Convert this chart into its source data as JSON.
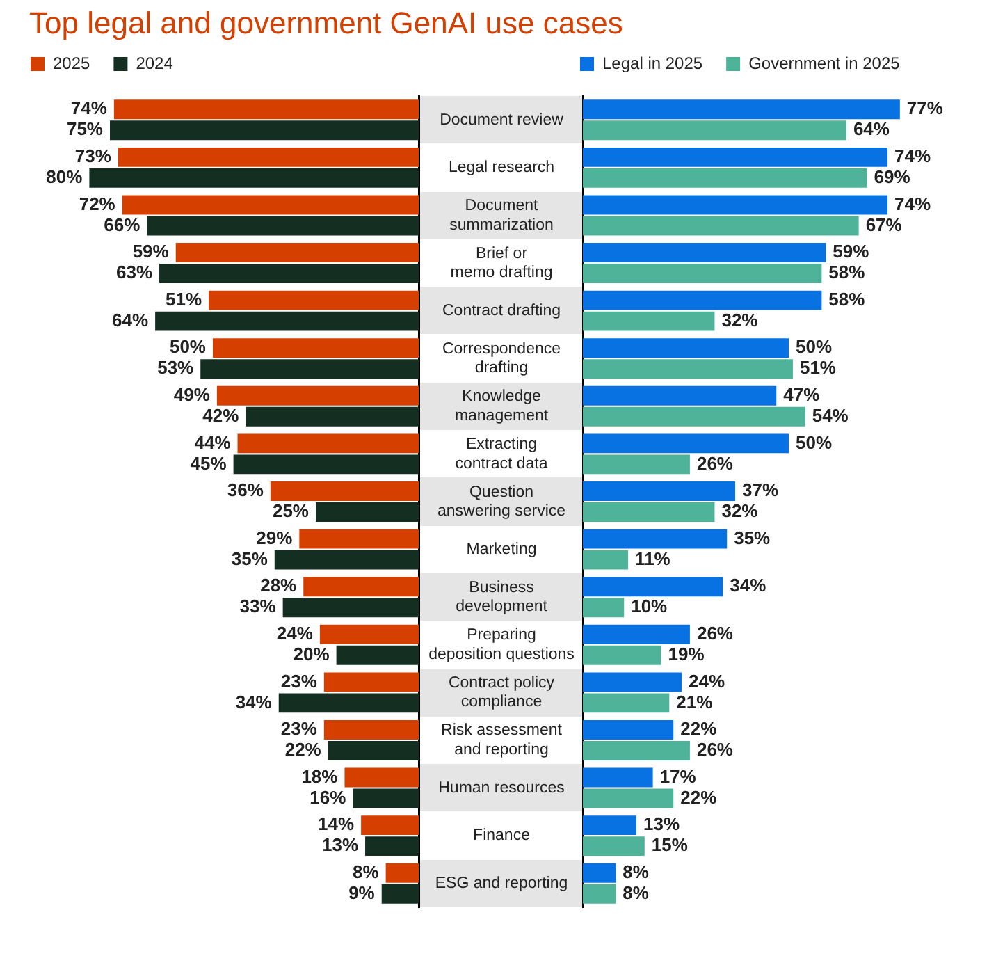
{
  "chart_data": [
    {
      "type": "bar",
      "orientation": "horizontal",
      "title": "Top legal and government GenAI use cases",
      "categories": [
        "Document review",
        "Legal research",
        "Document\nsummarization",
        "Brief or\nmemo drafting",
        "Contract drafting",
        "Correspondence\ndrafting",
        "Knowledge\nmanagement",
        "Extracting\ncontract data",
        "Question\nanswering service",
        "Marketing",
        "Business\ndevelopment",
        "Preparing\ndeposition questions",
        "Contract policy\ncompliance",
        "Risk assessment\nand reporting",
        "Human resources",
        "Finance",
        "ESG and reporting"
      ],
      "series": [
        {
          "name": "2025",
          "color": "#d54000",
          "values": [
            74,
            73,
            72,
            59,
            51,
            50,
            49,
            44,
            36,
            29,
            28,
            24,
            23,
            23,
            18,
            14,
            8
          ],
          "value_labels": [
            "74%",
            "73%",
            "72%",
            "59%",
            "51%",
            "50%",
            "49%",
            "44%",
            "36%",
            "29%",
            "28%",
            "24%",
            "23%",
            "23%",
            "18%",
            "14%",
            "8%"
          ]
        },
        {
          "name": "2024",
          "color": "#152e22",
          "values": [
            75,
            80,
            66,
            63,
            64,
            53,
            42,
            45,
            25,
            35,
            33,
            20,
            34,
            22,
            16,
            13,
            9
          ],
          "value_labels": [
            "75%",
            "80%",
            "66%",
            "63%",
            "64%",
            "53%",
            "42%",
            "45%",
            "25%",
            "35%",
            "33%",
            "20%",
            "34%",
            "22%",
            "16%",
            "13%",
            "9%"
          ]
        }
      ],
      "legend": "top left",
      "tick_labels": "y"
    },
    {
      "type": "bar",
      "orientation": "horizontal",
      "categories": [
        null,
        null,
        null,
        null,
        null,
        null,
        null,
        null,
        null,
        null,
        null,
        null,
        null,
        null,
        null,
        null,
        null
      ],
      "series": [
        {
          "name": "Legal in 2025",
          "color": "#0872e3",
          "values": [
            77,
            74,
            74,
            59,
            58,
            50,
            47,
            50,
            37,
            35,
            34,
            26,
            24,
            22,
            17,
            13,
            8
          ],
          "value_labels": [
            "77%",
            "74%",
            "74%",
            "59%",
            "58%",
            "50%",
            "47%",
            "50%",
            "37%",
            "35%",
            "34%",
            "26%",
            "24%",
            "22%",
            "17%",
            "13%",
            "8%"
          ]
        },
        {
          "name": "Government in 2025",
          "color": "#4fb399",
          "values": [
            64,
            69,
            67,
            58,
            32,
            51,
            54,
            26,
            32,
            11,
            10,
            19,
            21,
            26,
            22,
            15,
            8
          ],
          "value_labels": [
            "64%",
            "69%",
            "67%",
            "58%",
            "32%",
            "51%",
            "54%",
            "26%",
            "32%",
            "11%",
            "10%",
            "19%",
            "21%",
            "26%",
            "22%",
            "15%",
            "8%"
          ]
        }
      ],
      "legend": "top left",
      "tick_labels": false
    }
  ]
}
